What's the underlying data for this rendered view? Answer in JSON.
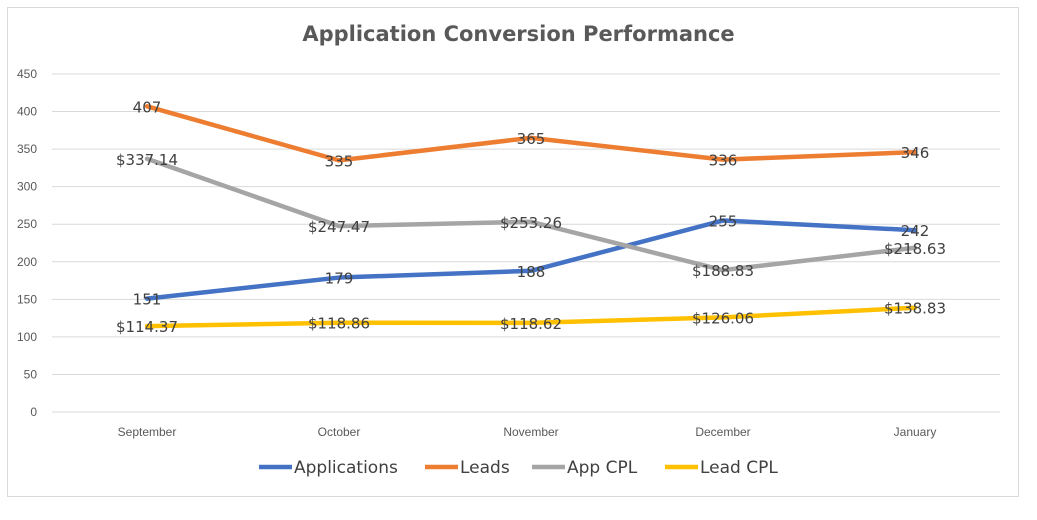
{
  "chart_data": {
    "type": "line",
    "title": "Application Conversion Performance",
    "categories": [
      "September",
      "October",
      "November",
      "December",
      "January"
    ],
    "ylim": [
      0,
      450
    ],
    "yticks": [
      0,
      50,
      100,
      150,
      200,
      250,
      300,
      350,
      400,
      450
    ],
    "grid": true,
    "legend_position": "bottom",
    "series": [
      {
        "name": "Applications",
        "color": "#4472C4",
        "values": [
          151,
          179,
          188,
          255,
          242
        ],
        "labels": [
          "151",
          "179",
          "188",
          "255",
          "242"
        ]
      },
      {
        "name": "Leads",
        "color": "#ED7D31",
        "values": [
          407,
          335,
          365,
          336,
          346
        ],
        "labels": [
          "407",
          "335",
          "365",
          "336",
          "346"
        ]
      },
      {
        "name": "App CPL",
        "color": "#A5A5A5",
        "values": [
          337.14,
          247.47,
          253.26,
          188.83,
          218.63
        ],
        "labels": [
          "$337.14",
          "$247.47",
          "$253.26",
          "$188.83",
          "$218.63"
        ]
      },
      {
        "name": "Lead CPL",
        "color": "#FFC000",
        "values": [
          114.37,
          118.86,
          118.62,
          126.06,
          138.83
        ],
        "labels": [
          "$114.37",
          "$118.86",
          "$118.62",
          "$126.06",
          "$138.83"
        ]
      }
    ]
  }
}
